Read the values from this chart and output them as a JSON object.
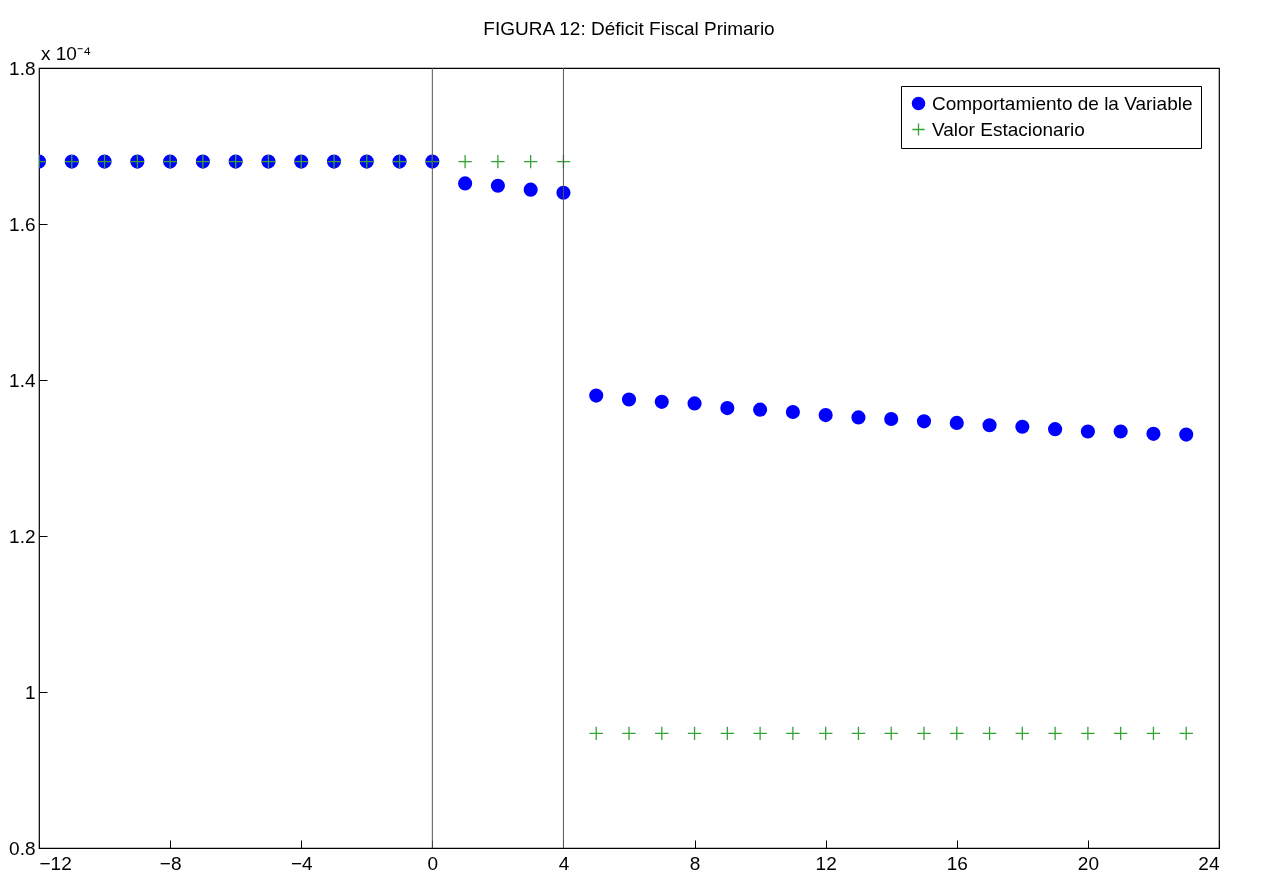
{
  "chart_data": {
    "type": "scatter",
    "title": "FIGURA 12:  Déficit Fiscal Primario",
    "annotations": [
      "x 10⁻⁴"
    ],
    "xlim": [
      -12,
      24
    ],
    "xticks": [
      -12,
      -8,
      -4,
      0,
      4,
      8,
      12,
      16,
      20,
      24
    ],
    "ylim": [
      0.8,
      1.8
    ],
    "yticks": [
      0.8,
      1,
      1.2,
      1.4,
      1.6,
      1.8
    ],
    "grid": false,
    "legend": "top right",
    "ref_lines": [
      {
        "axis": "x",
        "value": 0,
        "color": "#555555"
      },
      {
        "axis": "x",
        "value": 4,
        "color": "#555555"
      }
    ],
    "series": [
      {
        "name": "Comportamiento de la Variable",
        "color": "#0000ff",
        "marker": "circle",
        "x": [
          -12,
          -11,
          -10,
          -9,
          -8,
          -7,
          -6,
          -5,
          -4,
          -3,
          -2,
          -1,
          0,
          1,
          2,
          3,
          4,
          5,
          6,
          7,
          8,
          9,
          10,
          11,
          12,
          13,
          14,
          15,
          16,
          17,
          18,
          19,
          20,
          21,
          22,
          23
        ],
        "values": [
          1.68,
          1.68,
          1.68,
          1.68,
          1.68,
          1.68,
          1.68,
          1.68,
          1.68,
          1.68,
          1.68,
          1.68,
          1.68,
          1.652,
          1.649,
          1.644,
          1.64,
          1.38,
          1.375,
          1.372,
          1.37,
          1.364,
          1.362,
          1.359,
          1.355,
          1.352,
          1.35,
          1.347,
          1.345,
          1.342,
          1.34,
          1.337,
          1.334,
          1.334,
          1.331,
          1.33
        ]
      },
      {
        "name": "Valor Estacionario",
        "color": "#33a333",
        "marker": "cross",
        "x": [
          -12,
          -11,
          -10,
          -9,
          -8,
          -7,
          -6,
          -5,
          -4,
          -3,
          -2,
          -1,
          0,
          1,
          2,
          3,
          4,
          5,
          6,
          7,
          8,
          9,
          10,
          11,
          12,
          13,
          14,
          15,
          16,
          17,
          18,
          19,
          20,
          21,
          22,
          23
        ],
        "values": [
          1.68,
          1.68,
          1.68,
          1.68,
          1.68,
          1.68,
          1.68,
          1.68,
          1.68,
          1.68,
          1.68,
          1.68,
          1.68,
          1.68,
          1.68,
          1.68,
          1.68,
          0.947,
          0.947,
          0.947,
          0.947,
          0.947,
          0.947,
          0.947,
          0.947,
          0.947,
          0.947,
          0.947,
          0.947,
          0.947,
          0.947,
          0.947,
          0.947,
          0.947,
          0.947,
          0.947
        ]
      }
    ]
  }
}
